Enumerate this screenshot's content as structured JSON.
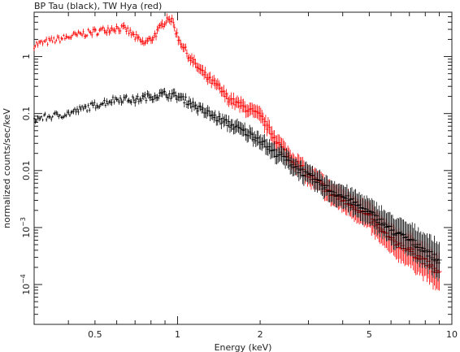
{
  "chart_data": {
    "type": "scatter",
    "title": "BP Tau (black), TW Hya (red)",
    "xlabel": "Energy (keV)",
    "ylabel": "normalized counts/sec/keV",
    "x_scale": "log",
    "y_scale": "log",
    "xlim": [
      0.3,
      10
    ],
    "ylim": [
      2e-05,
      6
    ],
    "grid": false,
    "legend": "none",
    "x_ticks": [
      {
        "v": 0.5,
        "label": "0.5"
      },
      {
        "v": 1,
        "label": "1"
      },
      {
        "v": 2,
        "label": "2"
      },
      {
        "v": 5,
        "label": "5"
      },
      {
        "v": 10,
        "label": "10"
      }
    ],
    "y_ticks": [
      {
        "v": 1,
        "label": "1",
        "sup": ""
      },
      {
        "v": 0.1,
        "label": "0.1",
        "sup": ""
      },
      {
        "v": 0.01,
        "label": "0.01",
        "sup": ""
      },
      {
        "v": 0.001,
        "label": "10",
        "sup": "−3"
      },
      {
        "v": 0.0001,
        "label": "10",
        "sup": "−4"
      }
    ],
    "series": [
      {
        "name": "TW Hya",
        "color": "#ff0000",
        "points": [
          [
            0.3,
            1.6
          ],
          [
            0.35,
            1.9
          ],
          [
            0.4,
            2.2
          ],
          [
            0.45,
            2.5
          ],
          [
            0.5,
            2.7
          ],
          [
            0.55,
            3.0
          ],
          [
            0.6,
            3.2
          ],
          [
            0.65,
            3.0
          ],
          [
            0.7,
            2.2
          ],
          [
            0.75,
            1.7
          ],
          [
            0.8,
            2.0
          ],
          [
            0.85,
            2.8
          ],
          [
            0.9,
            4.2
          ],
          [
            0.93,
            5.0
          ],
          [
            0.97,
            3.6
          ],
          [
            1.0,
            2.2
          ],
          [
            1.05,
            1.5
          ],
          [
            1.1,
            1.0
          ],
          [
            1.2,
            0.6
          ],
          [
            1.3,
            0.4
          ],
          [
            1.4,
            0.3
          ],
          [
            1.5,
            0.2
          ],
          [
            1.6,
            0.16
          ],
          [
            1.8,
            0.12
          ],
          [
            2.0,
            0.09
          ],
          [
            2.2,
            0.045
          ],
          [
            2.4,
            0.025
          ],
          [
            2.6,
            0.016
          ],
          [
            2.8,
            0.012
          ],
          [
            3.0,
            0.008
          ],
          [
            3.3,
            0.006
          ],
          [
            3.6,
            0.004
          ],
          [
            4.0,
            0.003
          ],
          [
            4.5,
            0.0022
          ],
          [
            5.0,
            0.0015
          ],
          [
            5.5,
            0.0009
          ],
          [
            6.0,
            0.0006
          ],
          [
            7.0,
            0.0004
          ],
          [
            8.0,
            0.00025
          ],
          [
            9.0,
            0.00015
          ]
        ]
      },
      {
        "name": "BP Tau",
        "color": "#000000",
        "points": [
          [
            0.3,
            0.08
          ],
          [
            0.35,
            0.09
          ],
          [
            0.4,
            0.1
          ],
          [
            0.45,
            0.12
          ],
          [
            0.5,
            0.14
          ],
          [
            0.55,
            0.16
          ],
          [
            0.6,
            0.18
          ],
          [
            0.65,
            0.18
          ],
          [
            0.7,
            0.17
          ],
          [
            0.75,
            0.19
          ],
          [
            0.8,
            0.2
          ],
          [
            0.9,
            0.22
          ],
          [
            1.0,
            0.2
          ],
          [
            1.1,
            0.16
          ],
          [
            1.2,
            0.12
          ],
          [
            1.3,
            0.1
          ],
          [
            1.4,
            0.08
          ],
          [
            1.5,
            0.07
          ],
          [
            1.6,
            0.06
          ],
          [
            1.8,
            0.045
          ],
          [
            2.0,
            0.035
          ],
          [
            2.2,
            0.022
          ],
          [
            2.4,
            0.018
          ],
          [
            2.6,
            0.013
          ],
          [
            2.8,
            0.01
          ],
          [
            3.0,
            0.008
          ],
          [
            3.3,
            0.006
          ],
          [
            3.6,
            0.0045
          ],
          [
            4.0,
            0.0035
          ],
          [
            4.5,
            0.0025
          ],
          [
            5.0,
            0.0018
          ],
          [
            5.5,
            0.0013
          ],
          [
            6.0,
            0.0009
          ],
          [
            7.0,
            0.0006
          ],
          [
            8.0,
            0.0004
          ],
          [
            9.0,
            0.00025
          ]
        ]
      }
    ]
  }
}
